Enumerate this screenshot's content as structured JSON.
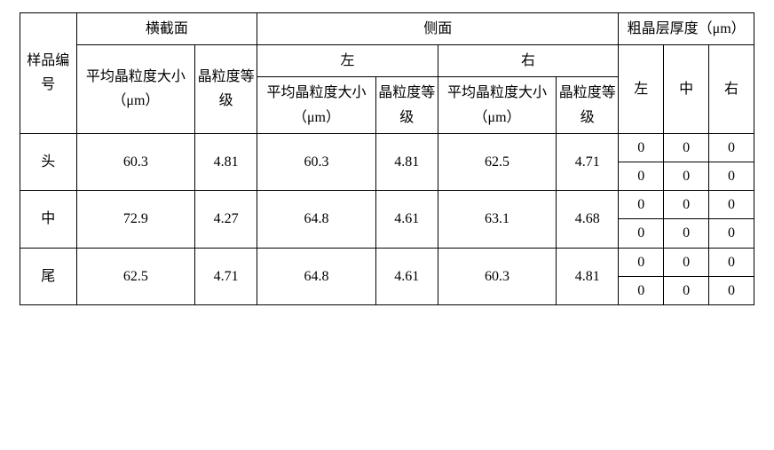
{
  "header": {
    "sample_id": "样品编号",
    "cross_section": "横截面",
    "side": "侧面",
    "coarse_layer": "粗晶层厚度（μm）",
    "left": "左",
    "right": "右",
    "middle": "中",
    "avg_grain_size": "平均晶粒度大小（μm）",
    "grain_grade": "晶粒度等级"
  },
  "rows": [
    {
      "id": "头",
      "hx_size": "60.3",
      "hx_grade": "4.81",
      "sl_size": "60.3",
      "sl_grade": "4.81",
      "sr_size": "62.5",
      "sr_grade": "4.71",
      "t1": [
        "0",
        "0",
        "0"
      ],
      "t2": [
        "0",
        "0",
        "0"
      ]
    },
    {
      "id": "中",
      "hx_size": "72.9",
      "hx_grade": "4.27",
      "sl_size": "64.8",
      "sl_grade": "4.61",
      "sr_size": "63.1",
      "sr_grade": "4.68",
      "t1": [
        "0",
        "0",
        "0"
      ],
      "t2": [
        "0",
        "0",
        "0"
      ]
    },
    {
      "id": "尾",
      "hx_size": "62.5",
      "hx_grade": "4.71",
      "sl_size": "64.8",
      "sl_grade": "4.61",
      "sr_size": "60.3",
      "sr_grade": "4.81",
      "t1": [
        "0",
        "0",
        "0"
      ],
      "t2": [
        "0",
        "0",
        "0"
      ]
    }
  ]
}
